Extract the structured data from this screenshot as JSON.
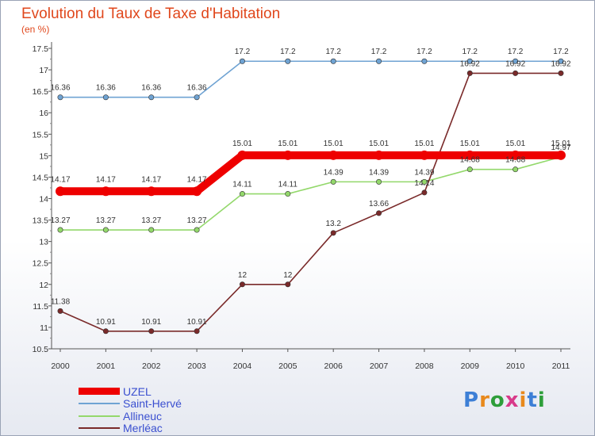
{
  "header": {
    "title": "Evolution du Taux de Taxe d'Habitation",
    "subtitle": "(en %)"
  },
  "logo": {
    "text": "Proxiti",
    "letters": [
      "P",
      "r",
      "o",
      "x",
      "i",
      "t",
      "i"
    ],
    "colors": [
      "#3d7fd6",
      "#e8891c",
      "#2e9e3a",
      "#d83a8a",
      "#e8891c",
      "#3d7fd6",
      "#2e9e3a"
    ]
  },
  "chart_data": {
    "type": "line",
    "x": [
      "2000",
      "2001",
      "2002",
      "2003",
      "2004",
      "2005",
      "2006",
      "2007",
      "2008",
      "2009",
      "2010",
      "2011"
    ],
    "ylim": [
      10.5,
      17.5
    ],
    "yticks": [
      "10.5",
      "11",
      "11.5",
      "12",
      "12.5",
      "13",
      "13.5",
      "14",
      "14.5",
      "15",
      "15.5",
      "16",
      "16.5",
      "17",
      "17.5"
    ],
    "grid": false,
    "legend_position": "bottom-left",
    "series": [
      {
        "name": "UZEL",
        "color": "#ee0000",
        "values": [
          14.17,
          14.17,
          14.17,
          14.17,
          15.01,
          15.01,
          15.01,
          15.01,
          15.01,
          15.01,
          15.01,
          15.01
        ],
        "labels": [
          "14.17",
          "14.17",
          "14.17",
          "14.17",
          "15.01",
          "15.01",
          "15.01",
          "15.01",
          "15.01",
          "15.01",
          "15.01",
          "15.01"
        ]
      },
      {
        "name": "Saint-Hervé",
        "color": "#6fa3d3",
        "values": [
          16.36,
          16.36,
          16.36,
          16.36,
          17.2,
          17.2,
          17.2,
          17.2,
          17.2,
          17.2,
          17.2,
          17.2
        ],
        "labels": [
          "16.36",
          "16.36",
          "16.36",
          "16.36",
          "17.2",
          "17.2",
          "17.2",
          "17.2",
          "17.2",
          "17.2",
          "17.2",
          "17.2"
        ]
      },
      {
        "name": "Allineuc",
        "color": "#93d86b",
        "values": [
          13.27,
          13.27,
          13.27,
          13.27,
          14.11,
          14.11,
          14.39,
          14.39,
          14.39,
          14.68,
          14.68,
          14.97
        ],
        "labels": [
          "13.27",
          "13.27",
          "13.27",
          "13.27",
          "14.11",
          "14.11",
          "14.39",
          "14.39",
          "14.39",
          "14.68",
          "14.68",
          "14.97"
        ]
      },
      {
        "name": "Merléac",
        "color": "#7a2a2a",
        "values": [
          11.38,
          10.91,
          10.91,
          10.91,
          12,
          12,
          13.2,
          13.66,
          14.14,
          16.92,
          16.92,
          16.92
        ],
        "labels": [
          "11.38",
          "10.91",
          "10.91",
          "10.91",
          "12",
          "12",
          "13.2",
          "13.66",
          "14.14",
          "16.92",
          "16.92",
          "16.92"
        ]
      }
    ]
  }
}
